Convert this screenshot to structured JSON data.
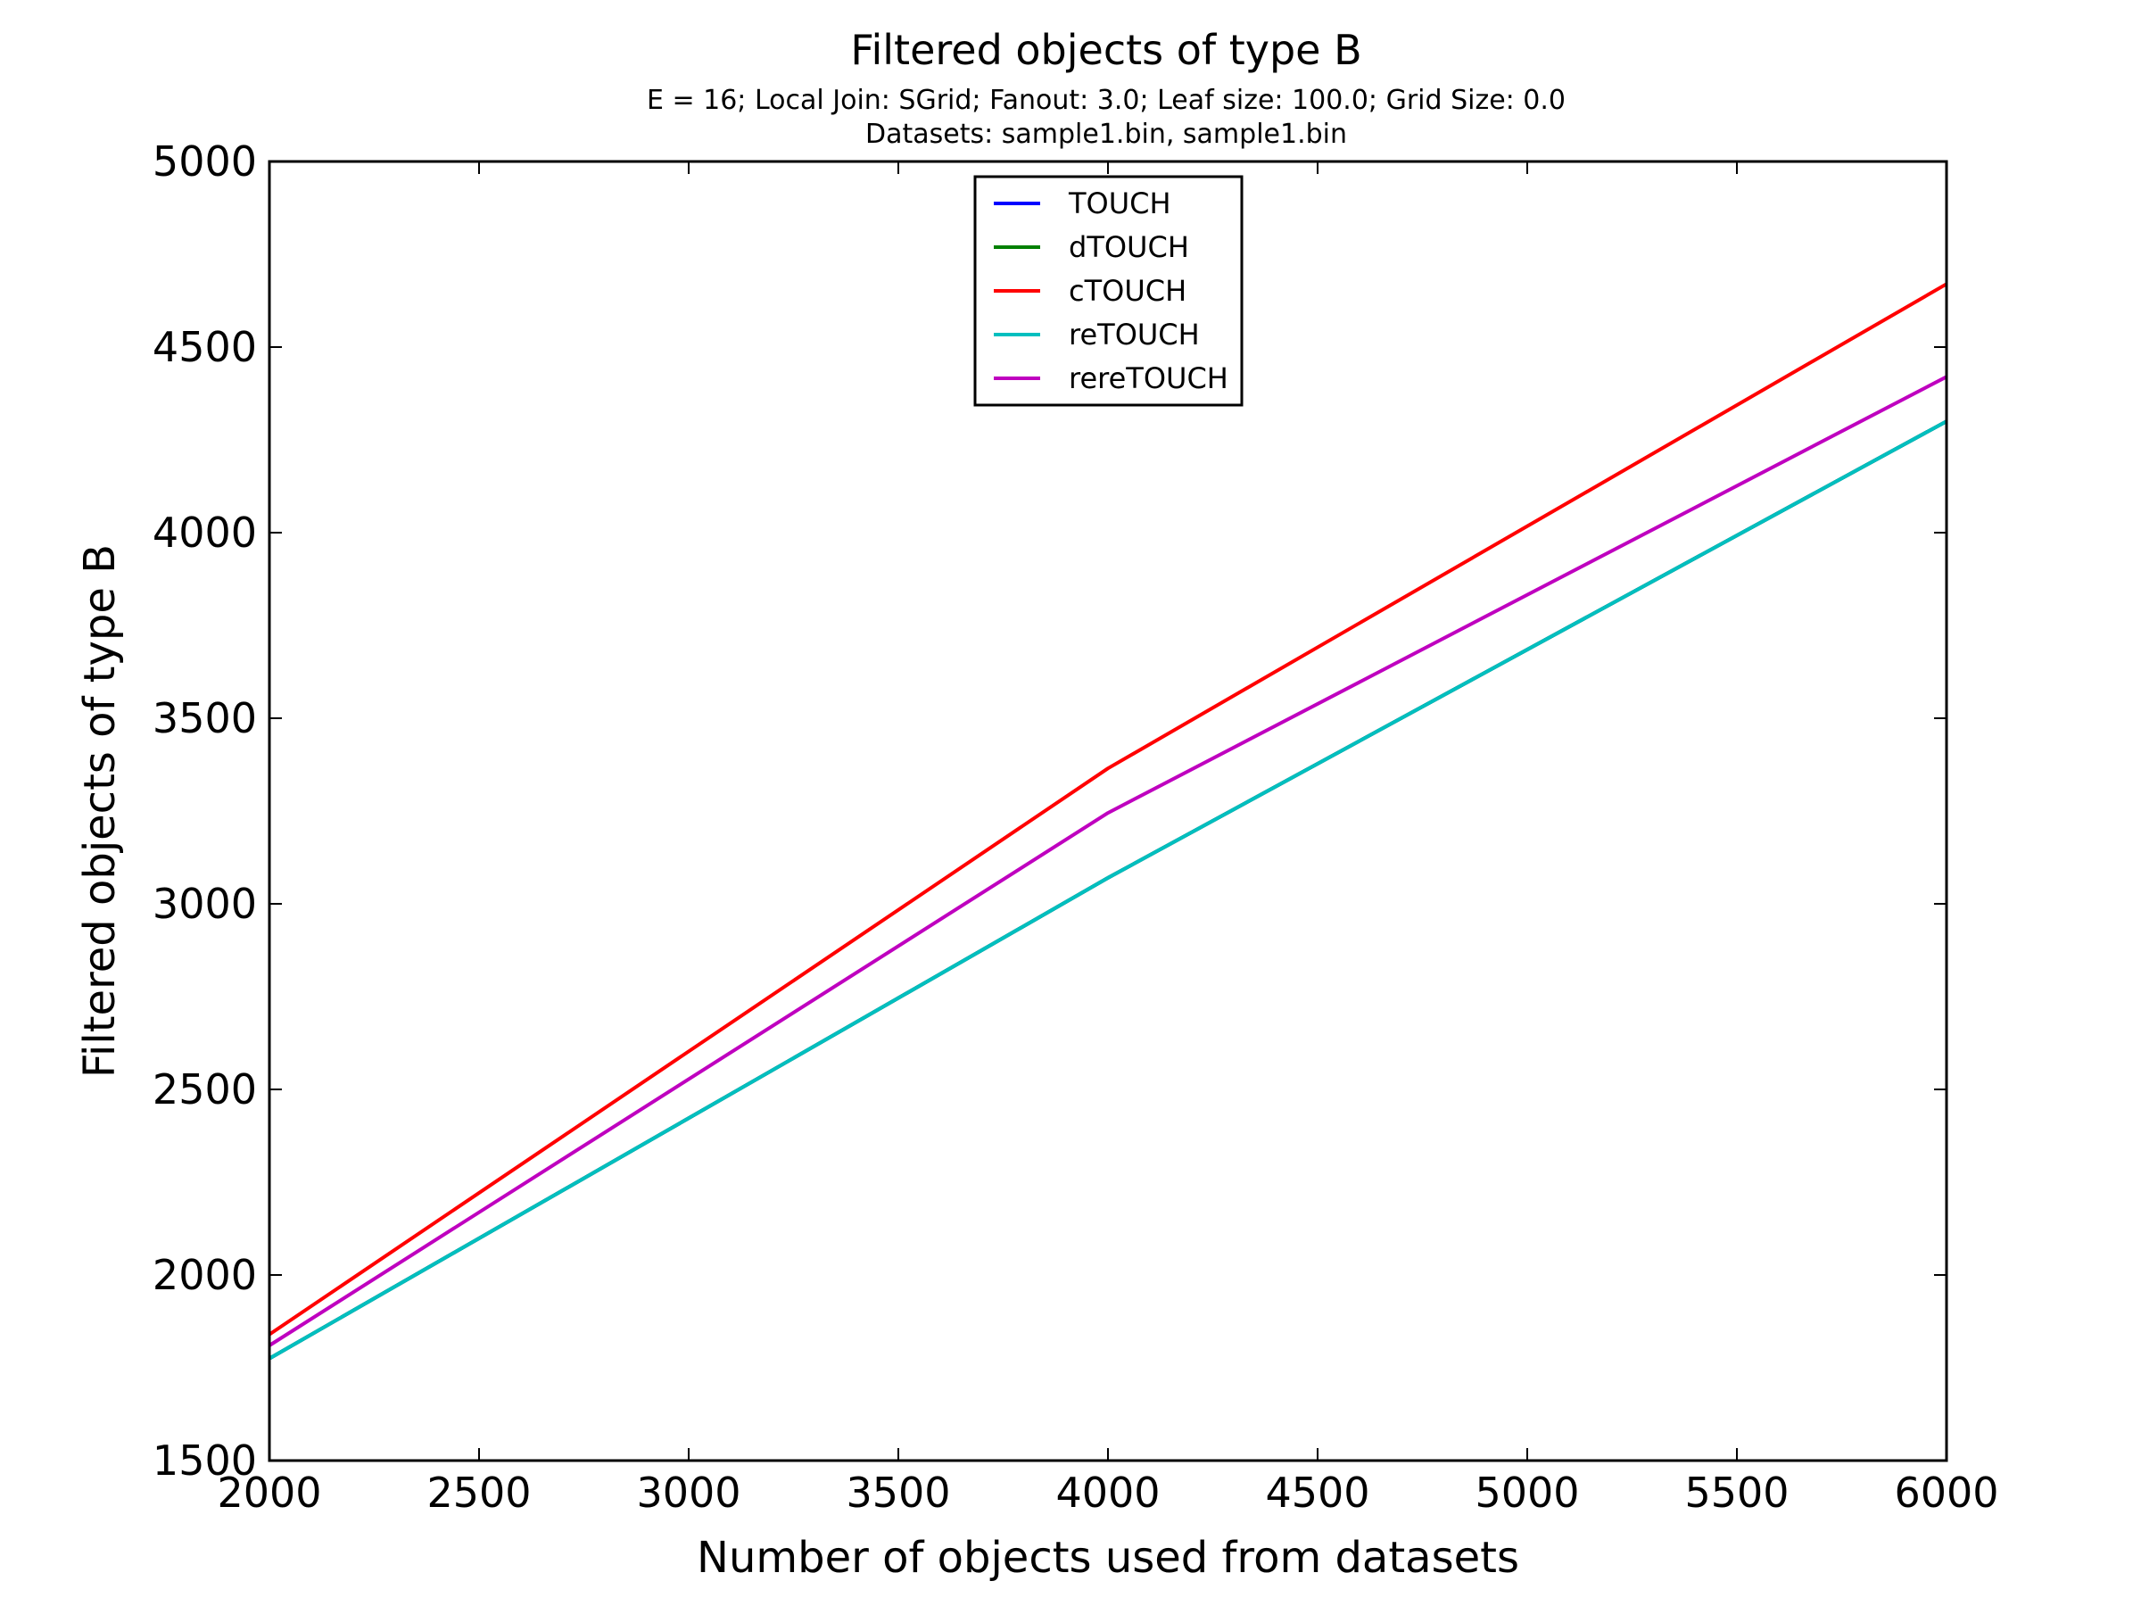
{
  "chart_data": {
    "type": "line",
    "title": "Filtered objects of type B",
    "subtitle_lines": [
      "E = 16; Local Join: SGrid; Fanout: 3.0; Leaf size: 100.0; Grid Size: 0.0",
      "Datasets: sample1.bin, sample1.bin"
    ],
    "xlabel": "Number of objects used from datasets",
    "ylabel": "Filtered objects of type B",
    "xlim": [
      2000,
      6000
    ],
    "ylim": [
      1500,
      5000
    ],
    "xticks": [
      "2000",
      "2500",
      "3000",
      "3500",
      "4000",
      "4500",
      "5000",
      "5500",
      "6000"
    ],
    "yticks": [
      "1500",
      "2000",
      "2500",
      "3000",
      "3500",
      "4000",
      "4500",
      "5000"
    ],
    "grid": false,
    "legend_position": "top-center",
    "x": [
      2000,
      4000,
      6000
    ],
    "series": [
      {
        "name": "TOUCH",
        "color": "#0000ff",
        "values": [
          1775,
          3070,
          4300
        ]
      },
      {
        "name": "dTOUCH",
        "color": "#008000",
        "values": [
          1775,
          3070,
          4300
        ]
      },
      {
        "name": "cTOUCH",
        "color": "#ff0000",
        "values": [
          1840,
          3365,
          4670
        ]
      },
      {
        "name": "reTOUCH",
        "color": "#00bfbf",
        "values": [
          1775,
          3070,
          4300
        ]
      },
      {
        "name": "rereTOUCH",
        "color": "#bf00bf",
        "values": [
          1810,
          3245,
          4420
        ]
      }
    ]
  }
}
